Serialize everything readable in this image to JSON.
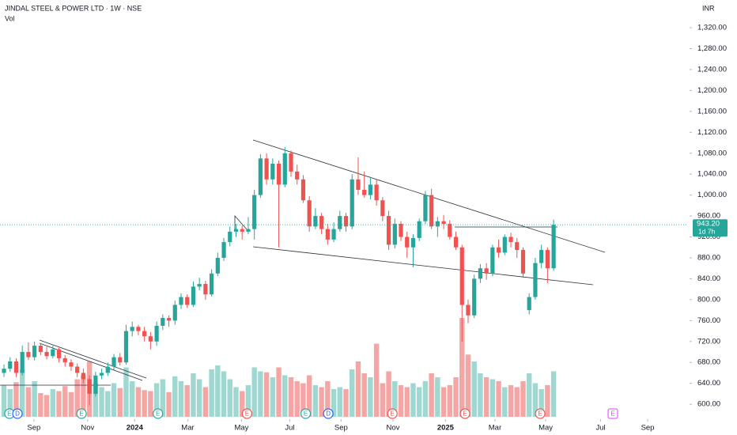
{
  "chart_data": {
    "type": "candlestick",
    "title": "JINDAL STEEL & POWER LTD · 1W · NSE",
    "volume_label": "Vol",
    "currency": "INR",
    "up_color": "#26a69a",
    "down_color": "#ef5350",
    "volume_up_color": "#9fd7d1",
    "volume_down_color": "#f5a6a4",
    "xlim": [
      -0.65,
      112
    ],
    "ylim": [
      576,
      1373
    ],
    "yticks": [
      {
        "value": 600,
        "label": "600.00"
      },
      {
        "value": 640,
        "label": "640.00"
      },
      {
        "value": 680,
        "label": "680.00"
      },
      {
        "value": 720,
        "label": "720.00"
      },
      {
        "value": 760,
        "label": "760.00"
      },
      {
        "value": 800,
        "label": "800.00"
      },
      {
        "value": 840,
        "label": "840.00"
      },
      {
        "value": 880,
        "label": "880.00"
      },
      {
        "value": 920,
        "label": "920.00"
      },
      {
        "value": 960,
        "label": "960.00"
      },
      {
        "value": 1000,
        "label": "1,000.00"
      },
      {
        "value": 1040,
        "label": "1,040.00"
      },
      {
        "value": 1080,
        "label": "1,080.00"
      },
      {
        "value": 1120,
        "label": "1,120.00"
      },
      {
        "value": 1160,
        "label": "1,160.00"
      },
      {
        "value": 1200,
        "label": "1,200.00"
      },
      {
        "value": 1240,
        "label": "1,240.00"
      },
      {
        "value": 1280,
        "label": "1,280.00"
      },
      {
        "value": 1320,
        "label": "1,320.00"
      }
    ],
    "xticks": [
      {
        "value": 4.9,
        "label": "Sep"
      },
      {
        "value": 13.7,
        "label": "Nov"
      },
      {
        "value": 21.4,
        "label": "2024"
      },
      {
        "value": 30.1,
        "label": "Mar"
      },
      {
        "value": 38.9,
        "label": "May"
      },
      {
        "value": 46.8,
        "label": "Jul"
      },
      {
        "value": 55.2,
        "label": "Sep"
      },
      {
        "value": 63.7,
        "label": "Nov"
      },
      {
        "value": 72.3,
        "label": "2025"
      },
      {
        "value": 80.4,
        "label": "Mar"
      },
      {
        "value": 88.7,
        "label": "May"
      },
      {
        "value": 97.7,
        "label": "Jul"
      },
      {
        "value": 105.4,
        "label": "Sep"
      }
    ],
    "open": [
      660,
      668,
      682,
      660,
      700,
      690,
      712,
      700,
      692,
      705,
      688,
      680,
      672,
      660,
      648,
      620,
      655,
      660,
      672,
      690,
      680,
      740,
      748,
      740,
      730,
      720,
      750,
      765,
      760,
      790,
      805,
      790,
      825,
      830,
      810,
      850,
      880,
      910,
      930,
      935,
      930,
      935,
      1000,
      1070,
      1030,
      1060,
      1020,
      1080,
      1045,
      1030,
      990,
      940,
      960,
      935,
      915,
      935,
      960,
      940,
      1030,
      1010,
      1000,
      1020,
      990,
      960,
      905,
      945,
      920,
      900,
      918,
      950,
      1000,
      940,
      950,
      945,
      920,
      900,
      790,
      770,
      840,
      860,
      850,
      900,
      890,
      920,
      910,
      895,
      780,
      805,
      870,
      895,
      860
    ],
    "high": [
      676,
      690,
      688,
      712,
      718,
      720,
      716,
      710,
      712,
      708,
      694,
      686,
      678,
      668,
      655,
      662,
      668,
      680,
      696,
      698,
      752,
      758,
      752,
      748,
      738,
      758,
      772,
      770,
      798,
      812,
      810,
      835,
      842,
      836,
      858,
      890,
      918,
      940,
      945,
      942,
      958,
      1010,
      1078,
      1080,
      1070,
      1066,
      1092,
      1085,
      1058,
      1038,
      998,
      975,
      966,
      945,
      948,
      970,
      966,
      1040,
      1072,
      1045,
      1035,
      1030,
      996,
      970,
      955,
      950,
      930,
      925,
      955,
      1008,
      1012,
      958,
      962,
      952,
      930,
      905,
      800,
      848,
      868,
      870,
      905,
      915,
      925,
      928,
      918,
      900,
      812,
      880,
      905,
      900,
      953
    ],
    "low": [
      652,
      662,
      652,
      655,
      685,
      684,
      694,
      686,
      688,
      680,
      672,
      664,
      652,
      640,
      598,
      615,
      648,
      654,
      666,
      674,
      676,
      730,
      732,
      720,
      705,
      712,
      742,
      748,
      752,
      782,
      784,
      786,
      818,
      800,
      806,
      845,
      874,
      902,
      920,
      915,
      925,
      915,
      995,
      1020,
      1020,
      900,
      1015,
      1035,
      1020,
      985,
      930,
      935,
      925,
      905,
      910,
      930,
      930,
      935,
      1000,
      995,
      992,
      980,
      950,
      895,
      898,
      912,
      880,
      862,
      912,
      945,
      935,
      920,
      935,
      915,
      895,
      720,
      755,
      765,
      832,
      838,
      845,
      880,
      885,
      900,
      880,
      842,
      772,
      800,
      860,
      832,
      855
    ],
    "close": [
      668,
      682,
      660,
      700,
      690,
      712,
      700,
      692,
      705,
      688,
      680,
      672,
      660,
      648,
      620,
      655,
      660,
      672,
      690,
      680,
      740,
      748,
      740,
      730,
      720,
      750,
      765,
      760,
      790,
      805,
      790,
      825,
      830,
      810,
      850,
      880,
      910,
      930,
      935,
      930,
      935,
      1000,
      1070,
      1030,
      1060,
      1020,
      1080,
      1045,
      1030,
      990,
      940,
      960,
      935,
      915,
      935,
      960,
      940,
      1030,
      1010,
      1000,
      1020,
      990,
      960,
      905,
      945,
      920,
      900,
      918,
      950,
      1000,
      940,
      950,
      945,
      920,
      900,
      790,
      770,
      840,
      860,
      850,
      900,
      890,
      920,
      910,
      895,
      850,
      805,
      870,
      895,
      860,
      943.2
    ],
    "volume": [
      3.2,
      2.8,
      3.5,
      4.8,
      3.0,
      3.6,
      2.4,
      2.2,
      2.8,
      2.6,
      3.1,
      2.5,
      3.8,
      4.2,
      5.6,
      3.4,
      3.0,
      2.6,
      3.4,
      2.9,
      5.0,
      3.6,
      3.0,
      2.7,
      2.6,
      3.4,
      3.8,
      2.5,
      4.1,
      3.6,
      3.2,
      4.4,
      3.8,
      3.0,
      4.8,
      5.2,
      4.6,
      3.8,
      3.0,
      2.6,
      3.2,
      5.0,
      4.6,
      4.5,
      4.0,
      5.0,
      4.2,
      4.0,
      3.6,
      3.4,
      4.2,
      3.2,
      3.0,
      3.6,
      2.8,
      3.0,
      2.8,
      4.8,
      5.6,
      4.4,
      4.0,
      7.4,
      3.4,
      4.6,
      3.6,
      3.2,
      3.0,
      3.4,
      3.0,
      3.6,
      4.4,
      4.0,
      3.0,
      3.2,
      4.0,
      10.0,
      6.3,
      5.6,
      4.4,
      4.0,
      3.8,
      3.6,
      3.0,
      3.2,
      3.0,
      3.6,
      4.4,
      3.4,
      2.8,
      3.2,
      4.6
    ],
    "last_price": {
      "value": 943.2,
      "label": "943.20"
    },
    "countdown": "1d 7h",
    "events": [
      {
        "x": 0.9,
        "label": "E",
        "color": "#26a69a"
      },
      {
        "x": 2.2,
        "label": "D",
        "color": "#2962ff"
      },
      {
        "x": 12.7,
        "label": "E",
        "color": "#26a69a"
      },
      {
        "x": 25.2,
        "label": "E",
        "color": "#26a69a"
      },
      {
        "x": 39.8,
        "label": "E",
        "color": "#ef5350"
      },
      {
        "x": 49.4,
        "label": "E",
        "color": "#26a69a"
      },
      {
        "x": 53.1,
        "label": "D",
        "color": "#2962ff"
      },
      {
        "x": 63.6,
        "label": "E",
        "color": "#ef5350"
      },
      {
        "x": 75.5,
        "label": "E",
        "color": "#ef5350"
      },
      {
        "x": 87.8,
        "label": "E",
        "color": "#ef5350"
      },
      {
        "x": 99.7,
        "label": "E",
        "color": "#e040fb"
      }
    ]
  }
}
